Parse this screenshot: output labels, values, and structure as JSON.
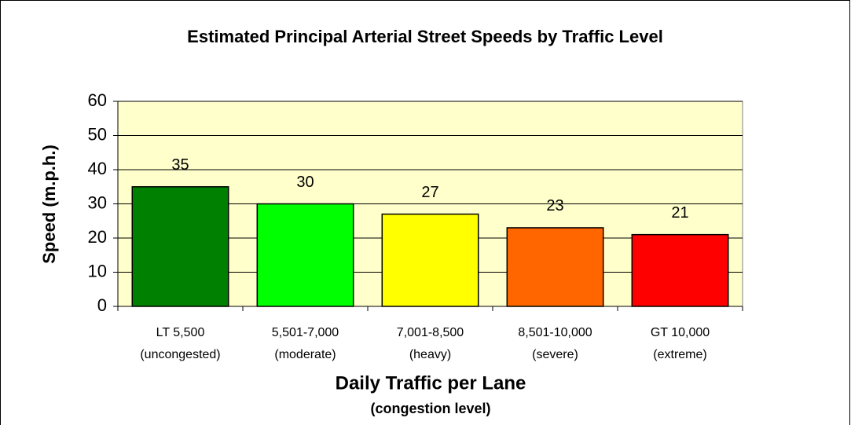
{
  "chart_data": {
    "type": "bar",
    "title": "Estimated Principal Arterial Street Speeds by Traffic Level",
    "x_axis_label": "Daily Traffic per Lane",
    "x_axis_sublabel": "(congestion level)",
    "y_axis_label": "Speed (m.p.h.)",
    "categories": [
      [
        "LT 5,500",
        "(uncongested)"
      ],
      [
        "5,501-7,000",
        "(moderate)"
      ],
      [
        "7,001-8,500",
        "(heavy)"
      ],
      [
        "8,501-10,000",
        "(severe)"
      ],
      [
        "GT 10,000",
        "(extreme)"
      ]
    ],
    "values": [
      35,
      30,
      27,
      23,
      21
    ],
    "colors": [
      "#008000",
      "#00ff00",
      "#ffff00",
      "#ff6600",
      "#ff0000"
    ],
    "ylim": [
      0,
      60
    ],
    "yticks": [
      0,
      10,
      20,
      30,
      40,
      50,
      60
    ],
    "grid": true
  }
}
